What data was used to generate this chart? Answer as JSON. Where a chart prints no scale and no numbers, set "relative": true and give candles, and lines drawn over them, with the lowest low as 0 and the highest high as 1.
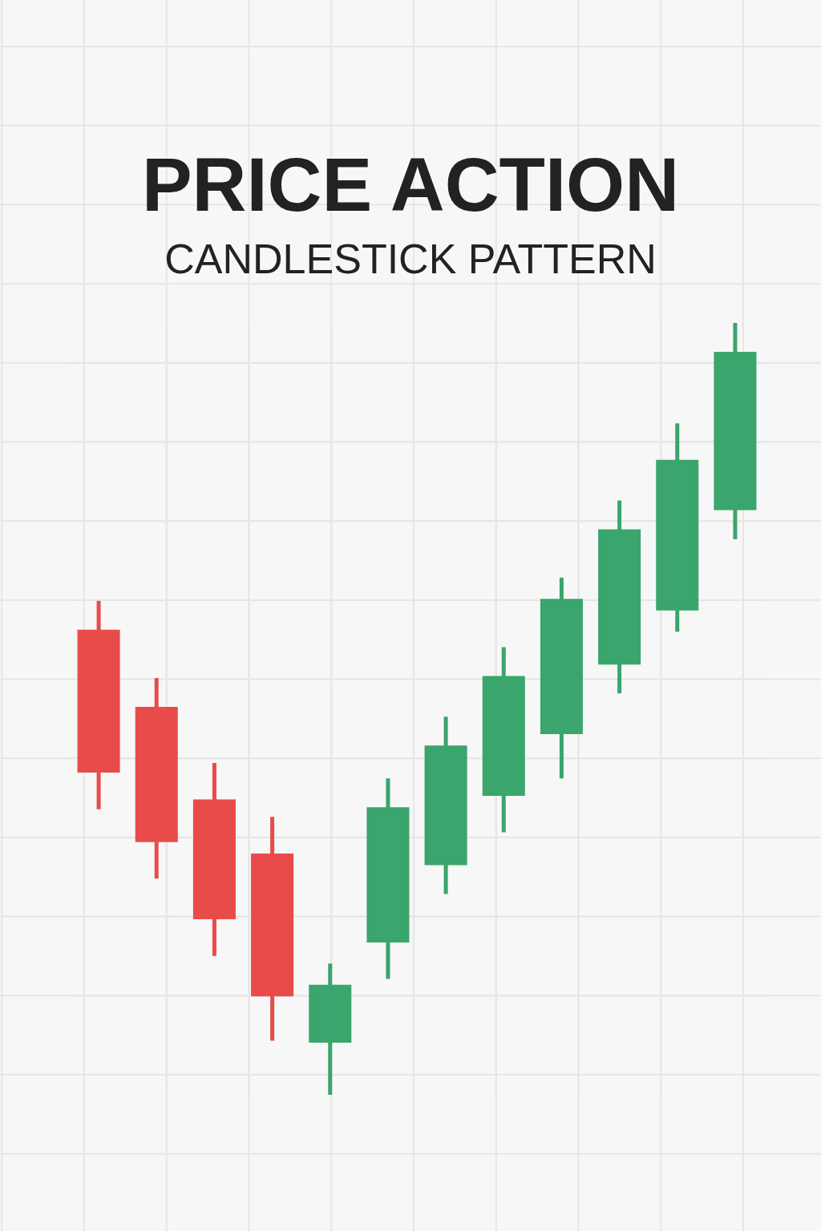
{
  "chart_data": {
    "type": "candlestick",
    "title": "PRICE ACTION",
    "subtitle": "CANDLESTICK PATTERN",
    "relative": true,
    "categories": [
      null,
      null,
      null,
      null,
      null,
      null,
      null,
      null,
      null,
      null,
      null,
      null
    ],
    "ohlc": [
      [
        0.6,
        0.64,
        0.37,
        0.42
      ],
      [
        0.5,
        0.54,
        0.28,
        0.33
      ],
      [
        0.38,
        0.43,
        0.18,
        0.23
      ],
      [
        0.31,
        0.36,
        0.07,
        0.13
      ],
      [
        0.07,
        0.17,
        0,
        0.14
      ],
      [
        0.2,
        0.41,
        0.15,
        0.37
      ],
      [
        0.3,
        0.49,
        0.26,
        0.45
      ],
      [
        0.39,
        0.58,
        0.34,
        0.54
      ],
      [
        0.47,
        0.67,
        0.41,
        0.64
      ],
      [
        0.56,
        0.77,
        0.52,
        0.73
      ],
      [
        0.63,
        0.87,
        0.6,
        0.82
      ],
      [
        0.76,
        1,
        0.72,
        0.96
      ]
    ],
    "colors": [
      "#e84c4a",
      "#e84c4a",
      "#e84c4a",
      "#e84c4a",
      "#3aa56c",
      "#3aa56c",
      "#3aa56c",
      "#3aa56c",
      "#3aa56c",
      "#3aa56c",
      "#3aa56c",
      "#3aa56c"
    ],
    "grid": true
  }
}
